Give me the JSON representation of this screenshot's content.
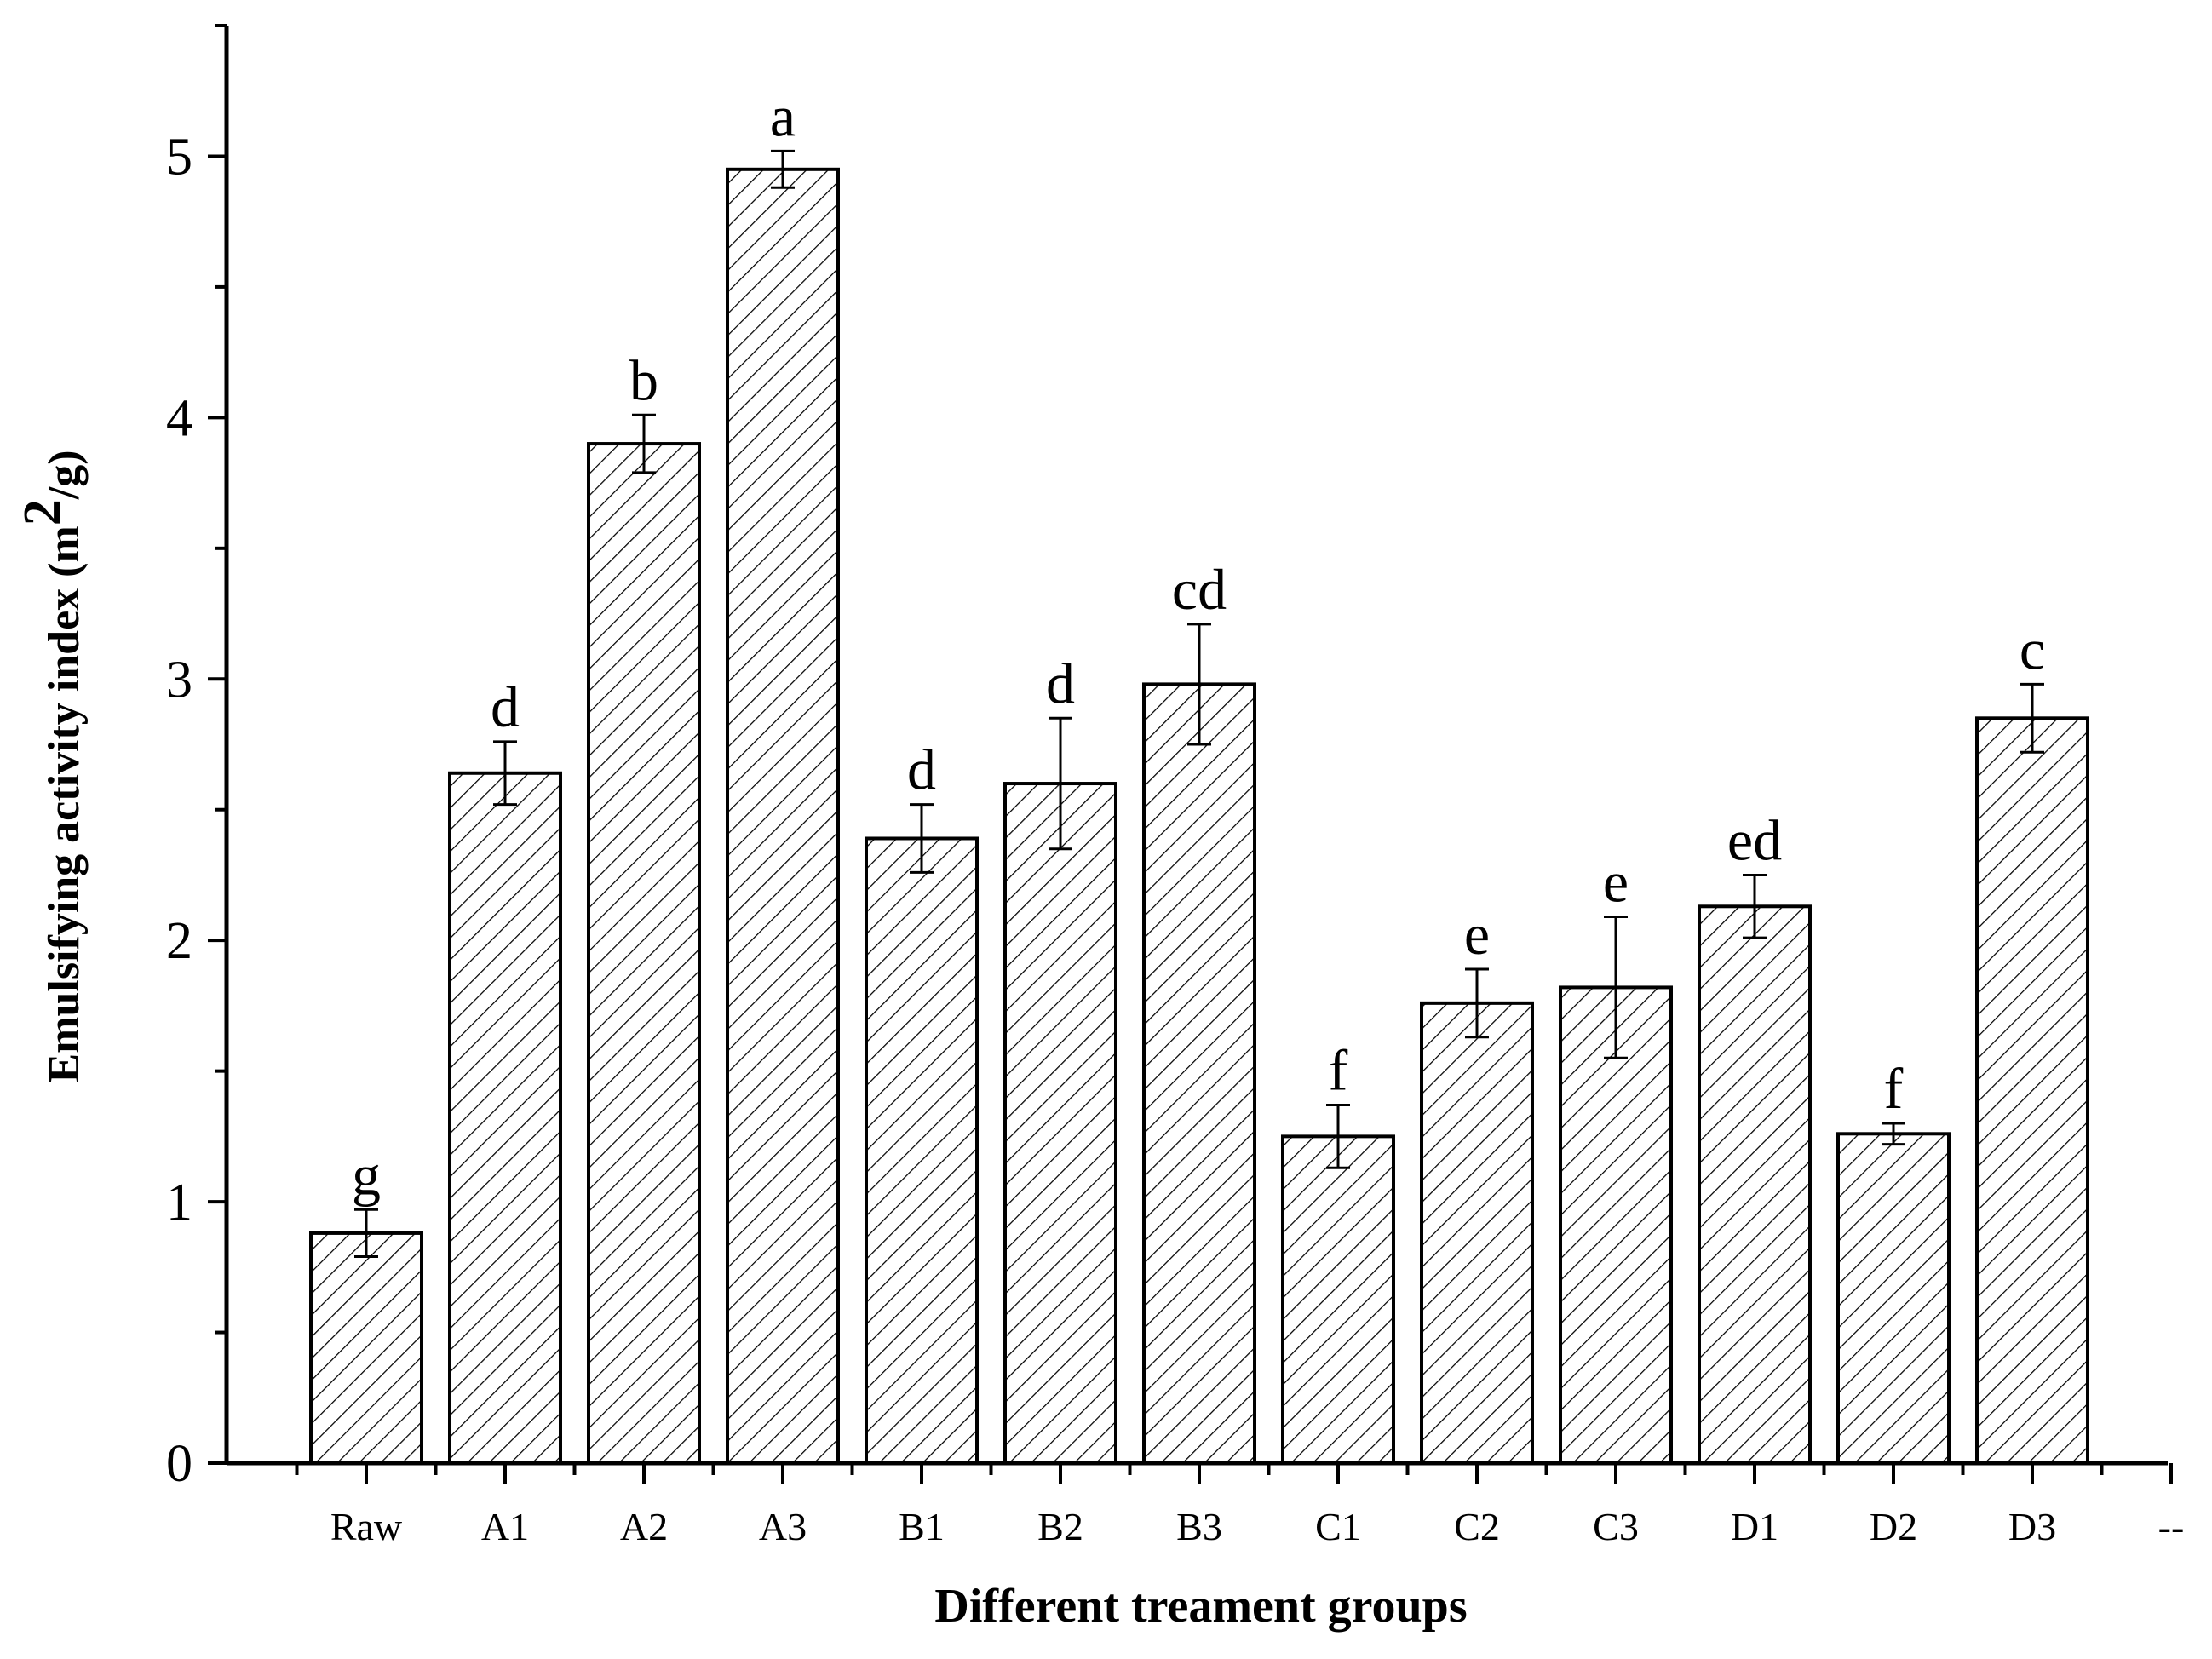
{
  "chart_data": {
    "type": "bar",
    "title": "",
    "xlabel": "Different treament groups",
    "ylabel": {
      "text": "Emulsifying activity index (m",
      "superscript": "2",
      "suffix": "/g)"
    },
    "ylim": [
      0,
      5.5
    ],
    "yticks": [
      0,
      1,
      2,
      3,
      4,
      5
    ],
    "categories": [
      "Raw",
      "A1",
      "A2",
      "A3",
      "B1",
      "B2",
      "B3",
      "C1",
      "C2",
      "C3",
      "D1",
      "D2",
      "D3",
      "--"
    ],
    "values": [
      0.88,
      2.64,
      3.9,
      4.95,
      2.39,
      2.6,
      2.98,
      1.25,
      1.76,
      1.82,
      2.13,
      1.26,
      2.85,
      null
    ],
    "errors": [
      0.09,
      0.12,
      0.11,
      0.07,
      0.13,
      0.25,
      0.23,
      0.12,
      0.13,
      0.27,
      0.12,
      0.04,
      0.13,
      null
    ],
    "significance_labels": [
      "g",
      "d",
      "b",
      "a",
      "d",
      "d",
      "cd",
      "f",
      "e",
      "e",
      "ed",
      "f",
      "c",
      ""
    ],
    "bar_pattern": "diagonal-hatch",
    "grid": false,
    "legend": "none"
  }
}
